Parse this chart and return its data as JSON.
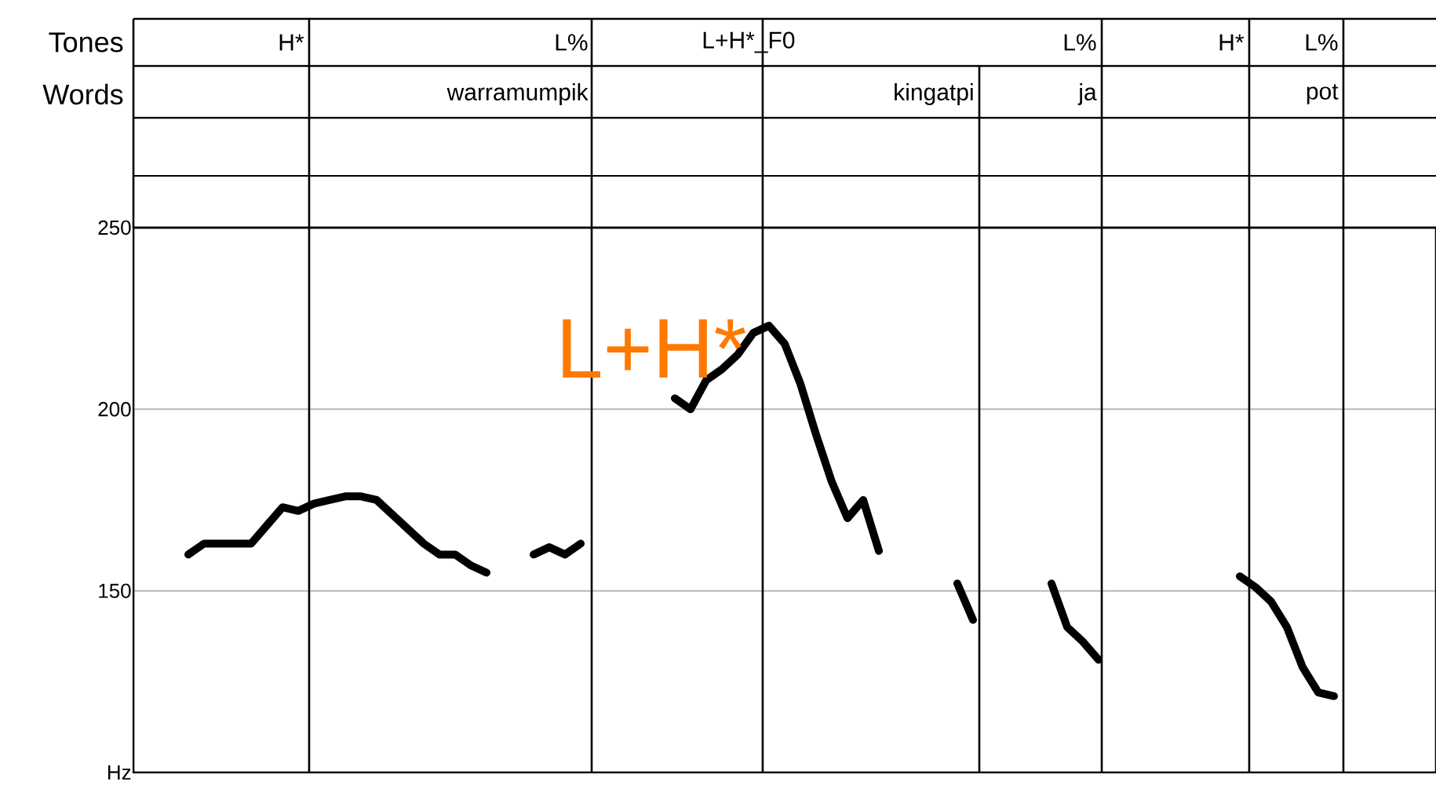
{
  "chart_data": {
    "type": "line",
    "categories": [
      null,
      null,
      null,
      null,
      null,
      null,
      null,
      null,
      null,
      null,
      null,
      null,
      null,
      null,
      null,
      null,
      null,
      null,
      null,
      null,
      null,
      null,
      null,
      null,
      null,
      null,
      null,
      null,
      null,
      null,
      null,
      null,
      null,
      null,
      null,
      null,
      null,
      null,
      null,
      null,
      null,
      null,
      null,
      null,
      null,
      null,
      null,
      null,
      null,
      null,
      null,
      null,
      null,
      null,
      null,
      null,
      null,
      null,
      null,
      null,
      null,
      null,
      null,
      null,
      null,
      null,
      null,
      null,
      null,
      null,
      null,
      null,
      null,
      null,
      null,
      null,
      null,
      null,
      null,
      null,
      null,
      null,
      null
    ],
    "series": [
      {
        "color": "#000000",
        "values": [
          null,
          null,
          null,
          160,
          163,
          163,
          163,
          163,
          168,
          173,
          172,
          174,
          175,
          176,
          176,
          175,
          171,
          167,
          163,
          160,
          160,
          157,
          155,
          null,
          null,
          160,
          162,
          160,
          163,
          null,
          null,
          null,
          null,
          null,
          203,
          200,
          208,
          211,
          215,
          221,
          223,
          218,
          207,
          193,
          180,
          170,
          175,
          161,
          null,
          null,
          null,
          null,
          152,
          142,
          null,
          null,
          null,
          null,
          152,
          140,
          136,
          131,
          null,
          null,
          null,
          null,
          null,
          null,
          null,
          null,
          154,
          151,
          147,
          140,
          129,
          122,
          121,
          null,
          null,
          null,
          null,
          null,
          null
        ]
      }
    ],
    "ylim": [
      100,
      250
    ],
    "yticks": [
      {
        "value": 100,
        "label": "Hz"
      },
      150,
      200,
      250
    ],
    "tick_labels": "y",
    "grid": "y",
    "line_style": "solid",
    "annotations": [
      "H*",
      "L%",
      "L+H*_F0",
      "L%",
      "H*",
      "L%",
      "warramumpik",
      "kingatpi",
      "ja",
      "pot",
      "Tones",
      "Words",
      "L+H*"
    ]
  }
}
